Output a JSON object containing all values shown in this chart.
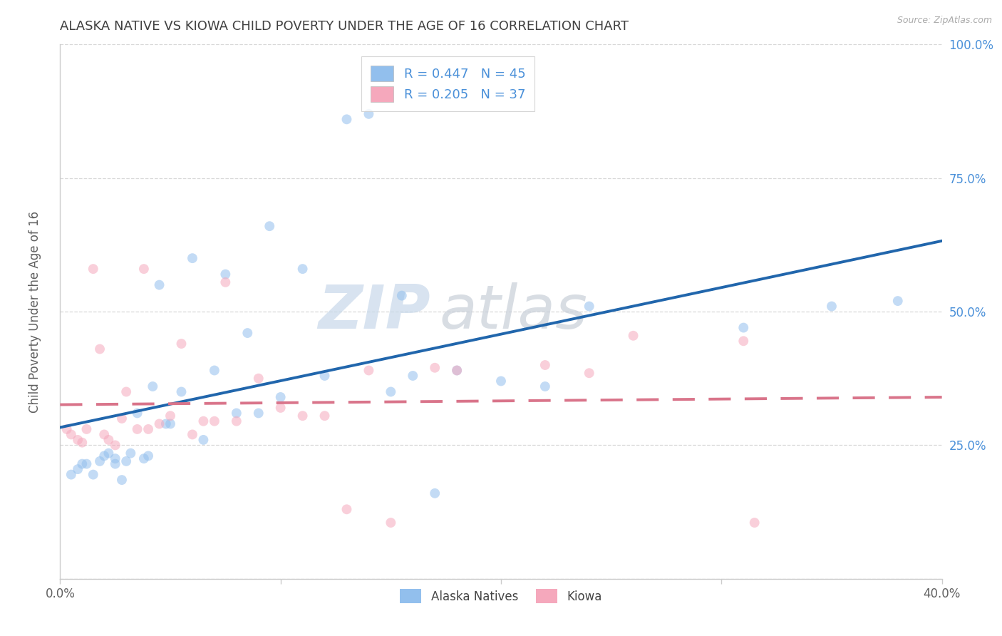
{
  "title": "ALASKA NATIVE VS KIOWA CHILD POVERTY UNDER THE AGE OF 16 CORRELATION CHART",
  "source": "Source: ZipAtlas.com",
  "ylabel": "Child Poverty Under the Age of 16",
  "xlim": [
    0.0,
    0.4
  ],
  "ylim": [
    0.0,
    1.0
  ],
  "xticks": [
    0.0,
    0.1,
    0.2,
    0.3,
    0.4
  ],
  "xticklabels": [
    "0.0%",
    "",
    "",
    "",
    "40.0%"
  ],
  "yticks": [
    0.0,
    0.25,
    0.5,
    0.75,
    1.0
  ],
  "yticklabels_right": [
    "",
    "25.0%",
    "50.0%",
    "75.0%",
    "100.0%"
  ],
  "alaska_x": [
    0.005,
    0.008,
    0.01,
    0.012,
    0.015,
    0.018,
    0.02,
    0.022,
    0.025,
    0.025,
    0.028,
    0.03,
    0.032,
    0.035,
    0.038,
    0.04,
    0.042,
    0.045,
    0.048,
    0.05,
    0.055,
    0.06,
    0.065,
    0.07,
    0.075,
    0.08,
    0.085,
    0.09,
    0.095,
    0.1,
    0.11,
    0.12,
    0.13,
    0.14,
    0.15,
    0.155,
    0.16,
    0.17,
    0.18,
    0.2,
    0.22,
    0.24,
    0.31,
    0.35,
    0.38
  ],
  "alaska_y": [
    0.195,
    0.205,
    0.215,
    0.215,
    0.195,
    0.22,
    0.23,
    0.235,
    0.215,
    0.225,
    0.185,
    0.22,
    0.235,
    0.31,
    0.225,
    0.23,
    0.36,
    0.55,
    0.29,
    0.29,
    0.35,
    0.6,
    0.26,
    0.39,
    0.57,
    0.31,
    0.46,
    0.31,
    0.66,
    0.34,
    0.58,
    0.38,
    0.86,
    0.87,
    0.35,
    0.53,
    0.38,
    0.16,
    0.39,
    0.37,
    0.36,
    0.51,
    0.47,
    0.51,
    0.52
  ],
  "kiowa_x": [
    0.003,
    0.005,
    0.008,
    0.01,
    0.012,
    0.015,
    0.018,
    0.02,
    0.022,
    0.025,
    0.028,
    0.03,
    0.035,
    0.038,
    0.04,
    0.045,
    0.05,
    0.055,
    0.06,
    0.065,
    0.07,
    0.075,
    0.08,
    0.09,
    0.1,
    0.11,
    0.12,
    0.13,
    0.14,
    0.15,
    0.17,
    0.18,
    0.22,
    0.24,
    0.26,
    0.31,
    0.315
  ],
  "kiowa_y": [
    0.28,
    0.27,
    0.26,
    0.255,
    0.28,
    0.58,
    0.43,
    0.27,
    0.26,
    0.25,
    0.3,
    0.35,
    0.28,
    0.58,
    0.28,
    0.29,
    0.305,
    0.44,
    0.27,
    0.295,
    0.295,
    0.555,
    0.295,
    0.375,
    0.32,
    0.305,
    0.305,
    0.13,
    0.39,
    0.105,
    0.395,
    0.39,
    0.4,
    0.385,
    0.455,
    0.445,
    0.105
  ],
  "alaska_color": "#92bfed",
  "kiowa_color": "#f5a8bc",
  "alaska_line_color": "#2166ac",
  "kiowa_line_color": "#d9748a",
  "watermark": "ZIPAtlas",
  "watermark_zip_color": "#c8d8ea",
  "watermark_atlas_color": "#c8cfd8",
  "background_color": "#ffffff",
  "grid_color": "#d8d8d8",
  "title_color": "#404040",
  "axis_label_color": "#606060",
  "tick_color_right": "#4a90d9",
  "tick_color_bottom": "#606060",
  "scatter_size": 100,
  "scatter_alpha": 0.55,
  "line_width": 2.8,
  "legend_label_1": "R = 0.447   N = 45",
  "legend_label_2": "R = 0.205   N = 37",
  "bottom_legend_1": "Alaska Natives",
  "bottom_legend_2": "Kiowa"
}
